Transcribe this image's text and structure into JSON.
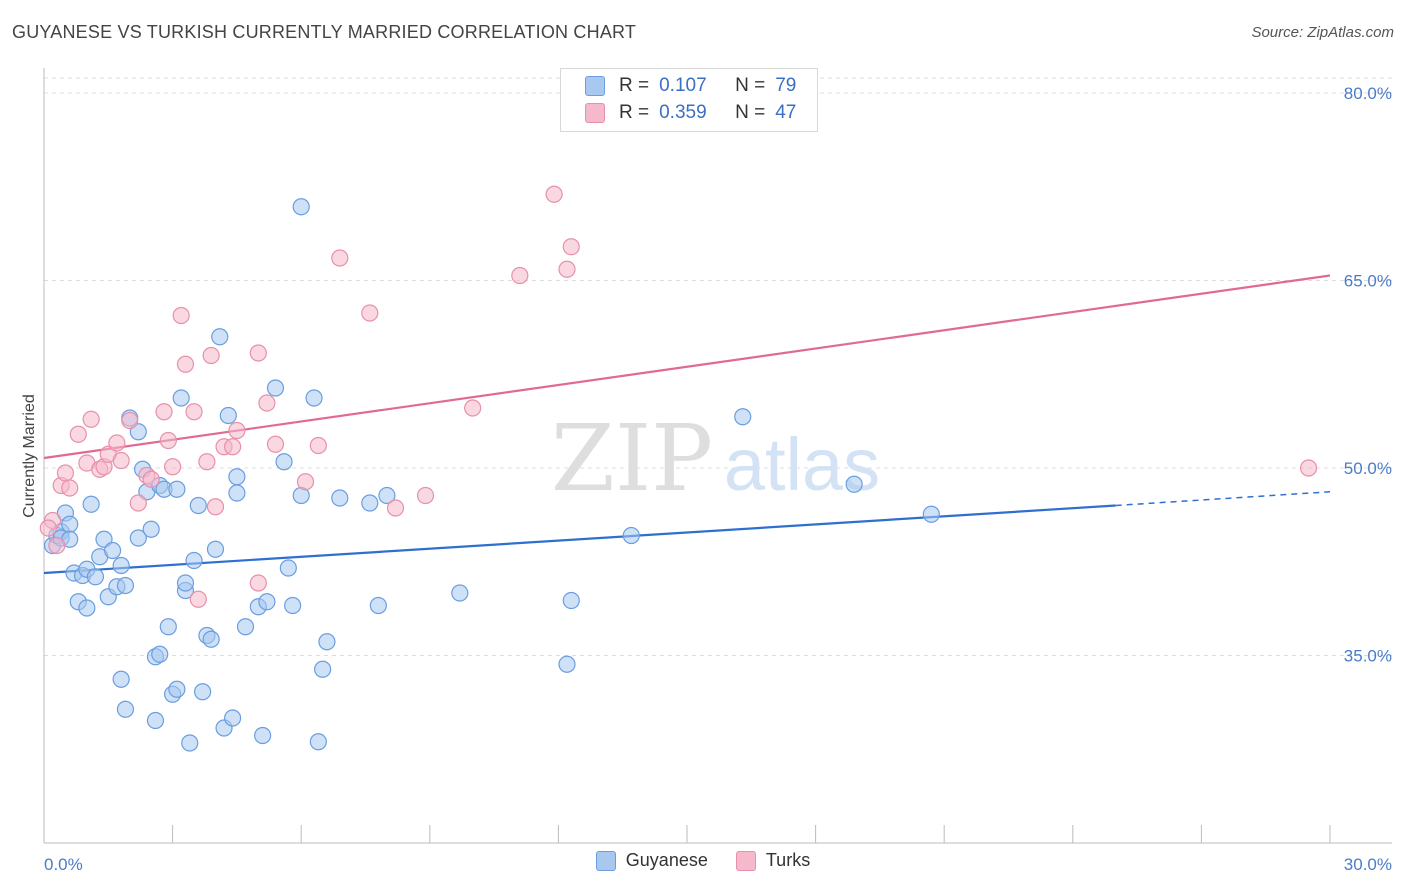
{
  "header": {
    "title": "GUYANESE VS TURKISH CURRENTLY MARRIED CORRELATION CHART",
    "source": "Source: ZipAtlas.com"
  },
  "watermark": {
    "zip": "ZIP",
    "atlas": "atlas"
  },
  "legend": {
    "rows": [
      {
        "r_label": "R =",
        "r_value": "0.107",
        "n_label": "N =",
        "n_value": "79"
      },
      {
        "r_label": "R =",
        "r_value": "0.359",
        "n_label": "N =",
        "n_value": "47"
      }
    ]
  },
  "bottom_legend": {
    "guyanese": "Guyanese",
    "turks": "Turks"
  },
  "chart_data": {
    "type": "scatter",
    "title": "GUYANESE VS TURKISH CURRENTLY MARRIED CORRELATION CHART",
    "xlabel": "",
    "ylabel": "Currently Married",
    "xlim": [
      0,
      30
    ],
    "ylim": [
      20,
      82
    ],
    "x_tick_labels": [
      "0.0%",
      "30.0%"
    ],
    "y_ticks": [
      35,
      50,
      65,
      80
    ],
    "y_tick_labels": [
      "35.0%",
      "50.0%",
      "65.0%",
      "80.0%"
    ],
    "grid": "horizontal dashed",
    "colors": {
      "guyanese_fill": "#a8c8f0",
      "guyanese_stroke": "#6a9ee0",
      "guyanese_line": "#2f6fd0",
      "turks_fill": "#f6b8cb",
      "turks_stroke": "#e890ab",
      "turks_line": "#e06a94"
    },
    "series": [
      {
        "name": "Guyanese",
        "r": 0.107,
        "n": 79,
        "trend": {
          "x0": 0,
          "y0": 41.6,
          "x1": 25,
          "y1": 47.0,
          "dashed_to_x": 30,
          "dashed_to_y": 48.1
        },
        "points": [
          [
            0.2,
            43.8
          ],
          [
            0.3,
            44.6
          ],
          [
            0.4,
            44.9
          ],
          [
            0.4,
            44.4
          ],
          [
            0.5,
            46.4
          ],
          [
            0.6,
            45.5
          ],
          [
            0.6,
            44.3
          ],
          [
            0.7,
            41.6
          ],
          [
            0.8,
            39.3
          ],
          [
            0.9,
            41.4
          ],
          [
            1.0,
            41.9
          ],
          [
            1.0,
            38.8
          ],
          [
            1.1,
            47.1
          ],
          [
            1.2,
            41.3
          ],
          [
            1.3,
            42.9
          ],
          [
            1.4,
            44.3
          ],
          [
            1.5,
            39.7
          ],
          [
            1.6,
            43.4
          ],
          [
            1.7,
            40.5
          ],
          [
            1.8,
            42.2
          ],
          [
            1.8,
            33.1
          ],
          [
            1.9,
            40.6
          ],
          [
            1.9,
            30.7
          ],
          [
            2.0,
            54.0
          ],
          [
            2.2,
            52.9
          ],
          [
            2.2,
            44.4
          ],
          [
            2.3,
            49.9
          ],
          [
            2.4,
            48.1
          ],
          [
            2.5,
            45.1
          ],
          [
            2.6,
            34.9
          ],
          [
            2.6,
            29.8
          ],
          [
            2.7,
            35.1
          ],
          [
            2.7,
            48.6
          ],
          [
            2.8,
            48.3
          ],
          [
            2.9,
            37.3
          ],
          [
            3.0,
            31.9
          ],
          [
            3.1,
            48.3
          ],
          [
            3.1,
            32.3
          ],
          [
            3.2,
            55.6
          ],
          [
            3.3,
            40.2
          ],
          [
            3.3,
            40.8
          ],
          [
            3.4,
            28.0
          ],
          [
            3.5,
            42.6
          ],
          [
            3.6,
            47.0
          ],
          [
            3.7,
            32.1
          ],
          [
            3.8,
            36.6
          ],
          [
            3.9,
            36.3
          ],
          [
            4.0,
            43.5
          ],
          [
            4.1,
            60.5
          ],
          [
            4.2,
            29.2
          ],
          [
            4.3,
            54.2
          ],
          [
            4.4,
            30.0
          ],
          [
            4.5,
            48.0
          ],
          [
            4.5,
            49.3
          ],
          [
            4.7,
            37.3
          ],
          [
            5.0,
            38.9
          ],
          [
            5.1,
            28.6
          ],
          [
            5.2,
            39.3
          ],
          [
            5.4,
            56.4
          ],
          [
            5.6,
            50.5
          ],
          [
            5.7,
            42.0
          ],
          [
            5.8,
            39.0
          ],
          [
            6.0,
            70.9
          ],
          [
            6.0,
            47.8
          ],
          [
            6.3,
            55.6
          ],
          [
            6.4,
            28.1
          ],
          [
            6.5,
            33.9
          ],
          [
            6.6,
            36.1
          ],
          [
            6.9,
            47.6
          ],
          [
            7.6,
            47.2
          ],
          [
            7.8,
            39.0
          ],
          [
            8.0,
            47.8
          ],
          [
            9.7,
            40.0
          ],
          [
            12.3,
            39.4
          ],
          [
            12.2,
            34.3
          ],
          [
            13.7,
            44.6
          ],
          [
            16.3,
            54.1
          ],
          [
            18.9,
            48.7
          ],
          [
            20.7,
            46.3
          ]
        ]
      },
      {
        "name": "Turks",
        "r": 0.359,
        "n": 47,
        "trend": {
          "x0": 0,
          "y0": 50.8,
          "x1": 30,
          "y1": 65.4
        },
        "points": [
          [
            0.2,
            45.8
          ],
          [
            0.4,
            48.6
          ],
          [
            0.5,
            49.6
          ],
          [
            0.6,
            48.4
          ],
          [
            0.8,
            52.7
          ],
          [
            1.0,
            50.4
          ],
          [
            1.1,
            53.9
          ],
          [
            1.3,
            49.9
          ],
          [
            1.4,
            50.1
          ],
          [
            1.5,
            51.1
          ],
          [
            1.7,
            52.0
          ],
          [
            1.8,
            50.6
          ],
          [
            2.0,
            53.8
          ],
          [
            2.2,
            47.2
          ],
          [
            2.4,
            49.4
          ],
          [
            2.5,
            49.1
          ],
          [
            2.8,
            54.5
          ],
          [
            2.9,
            52.2
          ],
          [
            3.0,
            50.1
          ],
          [
            3.2,
            62.2
          ],
          [
            3.3,
            58.3
          ],
          [
            3.5,
            54.5
          ],
          [
            3.6,
            39.5
          ],
          [
            3.8,
            50.5
          ],
          [
            3.9,
            59.0
          ],
          [
            4.0,
            46.9
          ],
          [
            4.2,
            51.7
          ],
          [
            4.4,
            51.7
          ],
          [
            4.5,
            53.0
          ],
          [
            5.0,
            40.8
          ],
          [
            5.0,
            59.2
          ],
          [
            5.2,
            55.2
          ],
          [
            5.4,
            51.9
          ],
          [
            6.1,
            48.9
          ],
          [
            6.4,
            51.8
          ],
          [
            6.9,
            66.8
          ],
          [
            7.6,
            62.4
          ],
          [
            8.2,
            46.8
          ],
          [
            8.9,
            47.8
          ],
          [
            10.0,
            54.8
          ],
          [
            11.1,
            65.4
          ],
          [
            11.9,
            71.9
          ],
          [
            12.2,
            65.9
          ],
          [
            12.3,
            67.7
          ],
          [
            29.5,
            50.0
          ],
          [
            0.3,
            43.8
          ],
          [
            0.1,
            45.2
          ]
        ]
      }
    ]
  }
}
